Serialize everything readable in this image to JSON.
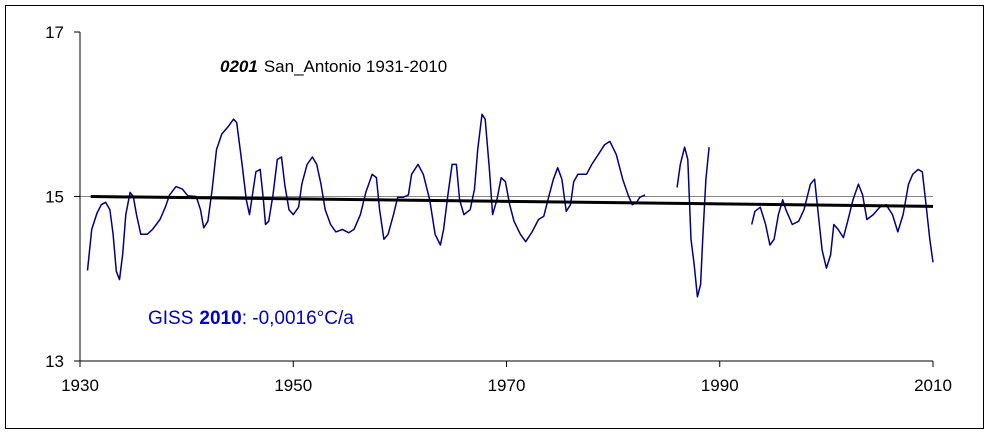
{
  "chart_data": {
    "type": "line",
    "title": {
      "code": "0201",
      "text": "San_Antonio 1931-2010"
    },
    "annotation": {
      "prefix": "GISS",
      "year": "2010",
      "rest": ": -0,0016°C/a"
    },
    "xlim": [
      1930,
      2010
    ],
    "xticks": [
      1930,
      1950,
      1970,
      1990,
      2010
    ],
    "ylim": [
      13,
      17
    ],
    "yticks": [
      13,
      15,
      17
    ],
    "grid": true,
    "series": [
      {
        "color": "#000080",
        "x": [
          1930.7,
          1931.1,
          1931.6,
          1932,
          1932.4,
          1932.8,
          1933.1,
          1933.4,
          1933.7,
          1934,
          1934.3,
          1934.7,
          1935,
          1935.3,
          1935.7,
          1936.3,
          1936.8,
          1937.5,
          1938,
          1938.4,
          1939,
          1939.6,
          1940.1,
          1940.9,
          1941.3,
          1941.6,
          1942,
          1942.4,
          1942.8,
          1943.3,
          1943.9,
          1944.4,
          1944.7,
          1945.2,
          1945.6,
          1945.9,
          1946.1,
          1946.5,
          1946.9,
          1947.2,
          1947.4,
          1947.7,
          1948.1,
          1948.5,
          1948.9,
          1949.2,
          1949.6,
          1950,
          1950.5,
          1950.8,
          1951.3,
          1951.8,
          1952.2,
          1952.6,
          1953,
          1953.5,
          1954,
          1954.6,
          1955.2,
          1955.7,
          1956.3,
          1956.8,
          1957.4,
          1957.8,
          1958.1,
          1958.5,
          1958.9,
          1959.4,
          1959.8,
          1960.3,
          1960.8,
          1961.1,
          1961.7,
          1962.2,
          1962.8,
          1963.3,
          1963.8,
          1964.1,
          1964.5,
          1964.9,
          1965.3,
          1965.6,
          1966,
          1966.6,
          1967,
          1967.3,
          1967.7,
          1968,
          1968.4,
          1968.7,
          1969.1,
          1969.5,
          1969.9,
          1970.3,
          1970.7,
          1971.3,
          1971.8,
          1972.4,
          1973,
          1973.5,
          1974,
          1974.4,
          1974.8,
          1975.2,
          1975.6,
          1976,
          1976.3,
          1976.7,
          1977.5,
          1978,
          1978.6,
          1979.2,
          1979.7,
          1980.3,
          1980.9,
          1981.4,
          1981.8,
          1982.2,
          1982.5,
          1983,
          1984,
          1986,
          1986.3,
          1986.7,
          1987,
          1987.3,
          1987.6,
          1987.9,
          1988.2,
          1988.4,
          1988.7,
          1989,
          1991,
          1993,
          1993.3,
          1993.8,
          1994.3,
          1994.7,
          1995.1,
          1995.5,
          1995.9,
          1996.2,
          1996.8,
          1997.4,
          1997.9,
          1998.5,
          1998.9,
          1999.2,
          1999.6,
          2000,
          2000.4,
          2000.7,
          2001.1,
          2001.6,
          2002,
          2002.5,
          2003,
          2003.4,
          2003.8,
          2004.4,
          2005,
          2005.6,
          2006.2,
          2006.7,
          2007.2,
          2007.7,
          2008.1,
          2008.6,
          2009,
          2009.3,
          2009.7,
          2010
        ],
        "values": [
          14.1,
          14.6,
          14.8,
          14.9,
          14.93,
          14.84,
          14.54,
          14.09,
          13.99,
          14.3,
          14.78,
          15.05,
          15.0,
          14.78,
          14.54,
          14.54,
          14.6,
          14.72,
          14.87,
          15.02,
          15.12,
          15.09,
          15.01,
          15.0,
          14.84,
          14.62,
          14.7,
          15.09,
          15.57,
          15.76,
          15.85,
          15.94,
          15.9,
          15.39,
          14.96,
          14.78,
          14.96,
          15.3,
          15.33,
          14.96,
          14.66,
          14.7,
          15.02,
          15.45,
          15.48,
          15.15,
          14.84,
          14.78,
          14.87,
          15.15,
          15.39,
          15.48,
          15.39,
          15.15,
          14.84,
          14.66,
          14.57,
          14.6,
          14.56,
          14.6,
          14.78,
          15.05,
          15.27,
          15.23,
          14.84,
          14.48,
          14.54,
          14.78,
          14.99,
          14.99,
          15.02,
          15.27,
          15.39,
          15.27,
          14.96,
          14.54,
          14.41,
          14.6,
          15.02,
          15.39,
          15.39,
          14.96,
          14.78,
          14.84,
          15.09,
          15.57,
          16.0,
          15.94,
          15.33,
          14.78,
          14.96,
          15.23,
          15.18,
          14.9,
          14.7,
          14.54,
          14.45,
          14.57,
          14.72,
          14.76,
          15.02,
          15.21,
          15.35,
          15.21,
          14.82,
          14.9,
          15.18,
          15.27,
          15.27,
          15.39,
          15.51,
          15.63,
          15.67,
          15.51,
          15.21,
          15.02,
          14.9,
          14.93,
          14.99,
          15.02,
          null,
          15.11,
          15.39,
          15.6,
          15.45,
          14.48,
          14.17,
          13.78,
          13.93,
          14.48,
          15.21,
          15.6,
          null,
          14.66,
          14.82,
          14.87,
          14.66,
          14.41,
          14.48,
          14.78,
          14.96,
          14.84,
          14.66,
          14.7,
          14.84,
          15.15,
          15.21,
          14.84,
          14.35,
          14.13,
          14.29,
          14.66,
          14.6,
          14.5,
          14.7,
          14.96,
          15.15,
          15.02,
          14.72,
          14.78,
          14.87,
          14.9,
          14.78,
          14.57,
          14.78,
          15.15,
          15.27,
          15.33,
          15.3,
          14.96,
          14.48,
          14.2
        ]
      },
      {
        "color": "#000000",
        "x": [
          1931,
          2010
        ],
        "values": [
          15.0,
          14.88
        ]
      }
    ]
  }
}
